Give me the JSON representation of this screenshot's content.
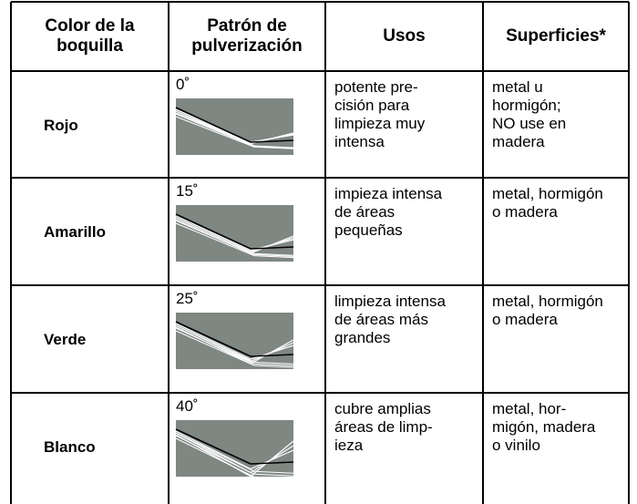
{
  "table": {
    "header": [
      [
        "Color de la",
        "boquilla"
      ],
      [
        "Patrón de",
        "pulverización"
      ],
      [
        "Usos"
      ],
      [
        "Superficies*"
      ]
    ],
    "rows": [
      {
        "color": "Rojo",
        "angle": "0˚",
        "uses": [
          "potente pre-",
          "cisión para",
          "limpieza muy",
          "intensa"
        ],
        "surfaces": [
          "metal u",
          "hormigón;",
          "NO use en",
          "madera"
        ]
      },
      {
        "color": "Amarillo",
        "angle": "15˚",
        "uses": [
          "impieza intensa",
          "de áreas",
          "pequeñas"
        ],
        "surfaces": [
          "metal, hormigón",
          "o madera"
        ]
      },
      {
        "color": "Verde",
        "angle": "25˚",
        "uses": [
          "limpieza intensa",
          "de áreas más",
          "grandes"
        ],
        "surfaces": [
          "metal, hormigón",
          "o madera"
        ]
      },
      {
        "color": "Blanco",
        "angle": "40˚",
        "uses": [
          "cubre amplias",
          "áreas de limp-",
          "ieza"
        ],
        "surfaces": [
          "metal, hor-",
          "migón, madera",
          "o vinilo"
        ]
      }
    ]
  }
}
